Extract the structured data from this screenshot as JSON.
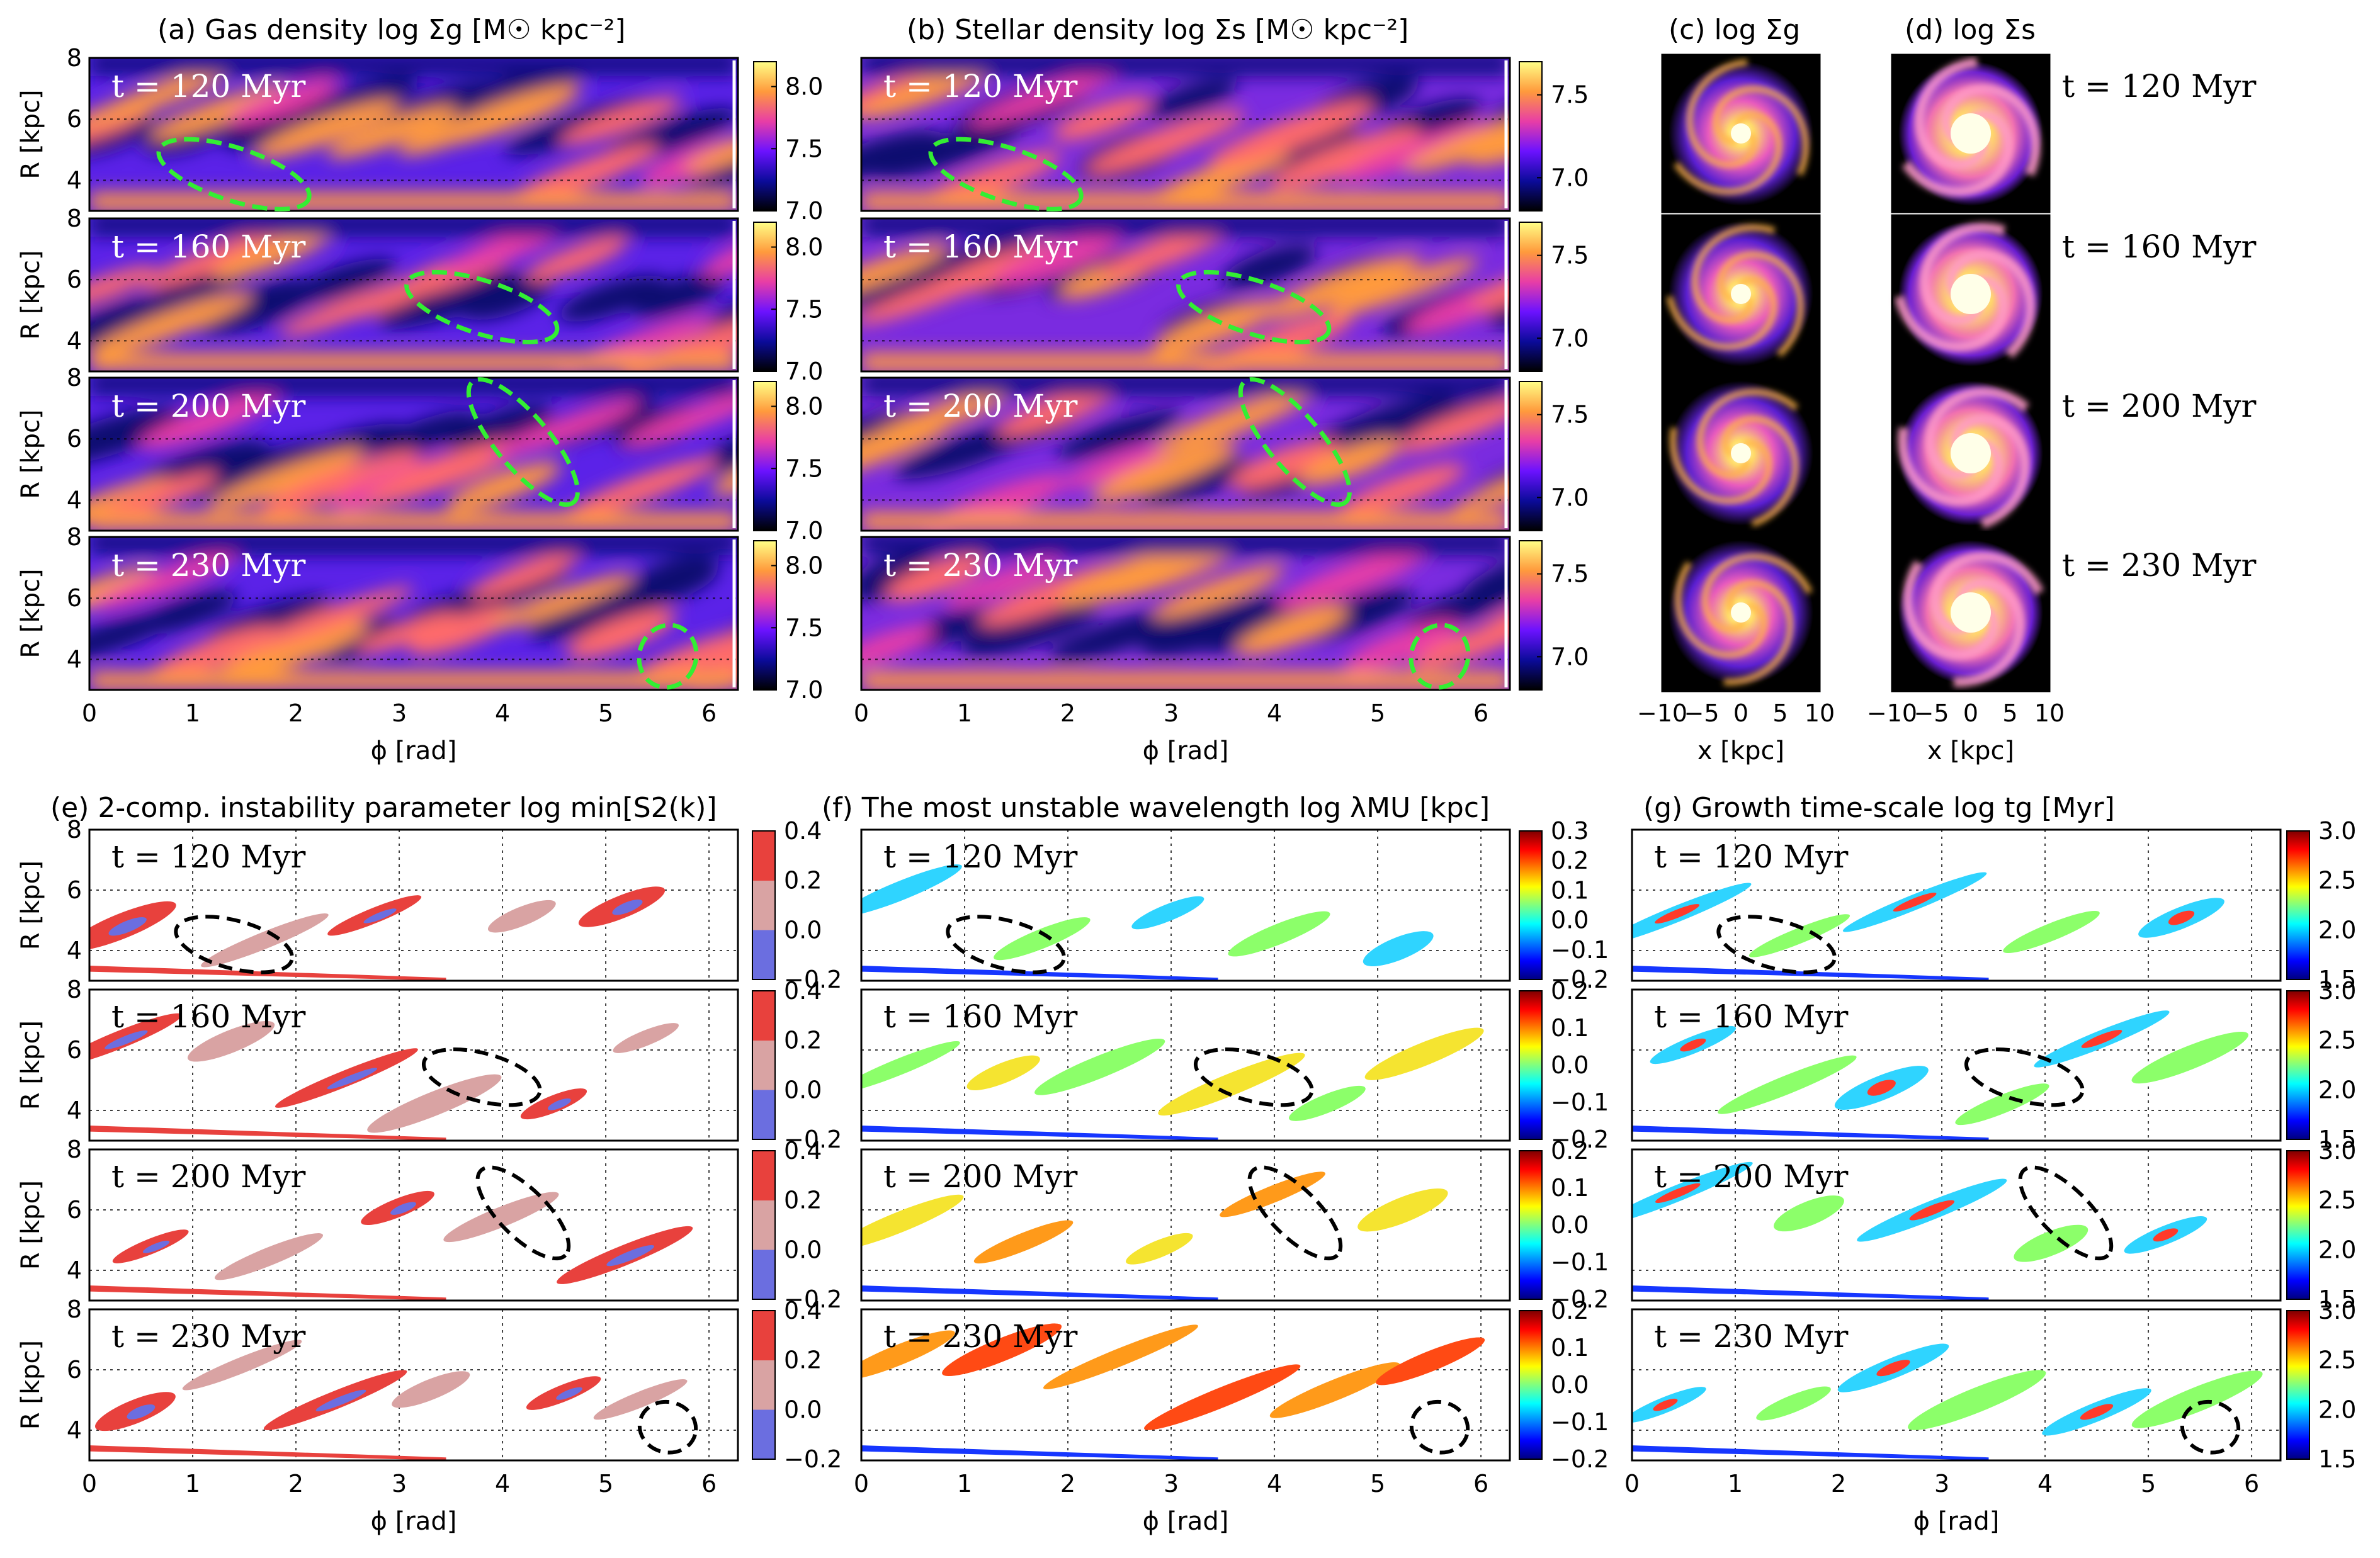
{
  "figure": {
    "titles": {
      "a": "(a) Gas density log Σg [M☉ kpc⁻²]",
      "b": "(b) Stellar density log Σs [M☉ kpc⁻²]",
      "c": "(c) log Σg",
      "d": "(d) log Σs",
      "e": "(e) 2-comp. instability parameter log min[S2(k)]",
      "f": "(f) The most unstable wavelength log λMU [kpc]",
      "g": "(g) Growth time-scale log tg [Myr]"
    },
    "x_label_phi": "ϕ [rad]",
    "x_label_x": "x [kpc]",
    "y_label_R": "R [kpc]",
    "times": [
      "t = 120 Myr",
      "t = 160 Myr",
      "t = 200 Myr",
      "t = 230 Myr"
    ]
  },
  "chart_data": [
    {
      "panel": "a",
      "type": "heatmap",
      "colormap": "gnuplot2",
      "x_ticks": [
        "0",
        "1",
        "2",
        "3",
        "4",
        "5",
        "6"
      ],
      "xlim": [
        0,
        6.28
      ],
      "y_ticks": [
        "4",
        "6",
        "8"
      ],
      "ylim": [
        3,
        8
      ],
      "colorbar_ticks": [
        "7.0",
        "7.5",
        "8.0"
      ],
      "colorbar_range": [
        7.0,
        8.2
      ],
      "highlight_ellipses": [
        {
          "t": "120 Myr",
          "phi": 1.4,
          "R": 4.2
        },
        {
          "t": "160 Myr",
          "phi": 3.8,
          "R": 5.1
        },
        {
          "t": "200 Myr",
          "phi": 4.2,
          "R": 5.9
        },
        {
          "t": "230 Myr",
          "phi": 5.6,
          "R": 4.1
        }
      ]
    },
    {
      "panel": "b",
      "type": "heatmap",
      "colormap": "gnuplot2",
      "x_ticks": [
        "0",
        "1",
        "2",
        "3",
        "4",
        "5",
        "6"
      ],
      "xlim": [
        0,
        6.28
      ],
      "y_ticks": [
        "4",
        "6",
        "8"
      ],
      "ylim": [
        3,
        8
      ],
      "colorbar_ticks": [
        "7.0",
        "7.5"
      ],
      "colorbar_range": [
        6.8,
        7.7
      ]
    },
    {
      "panel": "c",
      "type": "heatmap",
      "description_source": "face-on gas maps",
      "x_ticks": [
        "−10",
        "−5",
        "0",
        "5",
        "10"
      ],
      "xlim": [
        -10,
        10
      ]
    },
    {
      "panel": "d",
      "type": "heatmap",
      "description_source": "face-on stellar maps",
      "x_ticks": [
        "−10",
        "−5",
        "0",
        "5",
        "10"
      ],
      "xlim": [
        -10,
        10
      ]
    },
    {
      "panel": "e",
      "type": "heatmap",
      "x_ticks": [
        "0",
        "1",
        "2",
        "3",
        "4",
        "5",
        "6"
      ],
      "xlim": [
        0,
        6.28
      ],
      "y_ticks": [
        "4",
        "6",
        "8"
      ],
      "ylim": [
        3,
        8
      ],
      "colorbar_ticks": [
        "0.4",
        "0.2",
        "0.0",
        "−0.2"
      ],
      "colorbar_range": [
        -0.2,
        0.4
      ],
      "colors": [
        "#6b6ee0",
        "#d9a3a3",
        "#e8413d"
      ]
    },
    {
      "panel": "f",
      "type": "heatmap",
      "colormap": "jet",
      "x_ticks": [
        "0",
        "1",
        "2",
        "3",
        "4",
        "5",
        "6"
      ],
      "xlim": [
        0,
        6.28
      ],
      "y_ticks": [
        "4",
        "6",
        "8"
      ],
      "ylim": [
        3,
        8
      ],
      "colorbar_ticks_row1": [
        "0.3",
        "0.2",
        "0.1",
        "0.0",
        "−0.1",
        "−0.2"
      ],
      "colorbar_ticks": [
        "0.2",
        "0.1",
        "0.0",
        "−0.1",
        "−0.2"
      ],
      "colorbar_range": [
        -0.2,
        0.27
      ]
    },
    {
      "panel": "g",
      "type": "heatmap",
      "colormap": "jet",
      "x_ticks": [
        "0",
        "1",
        "2",
        "3",
        "4",
        "5",
        "6"
      ],
      "xlim": [
        0,
        6.28
      ],
      "y_ticks": [
        "4",
        "6",
        "8"
      ],
      "ylim": [
        3,
        8
      ],
      "colorbar_ticks": [
        "3.0",
        "2.5",
        "2.0",
        "1.5"
      ],
      "colorbar_range": [
        1.5,
        3.0
      ]
    }
  ]
}
